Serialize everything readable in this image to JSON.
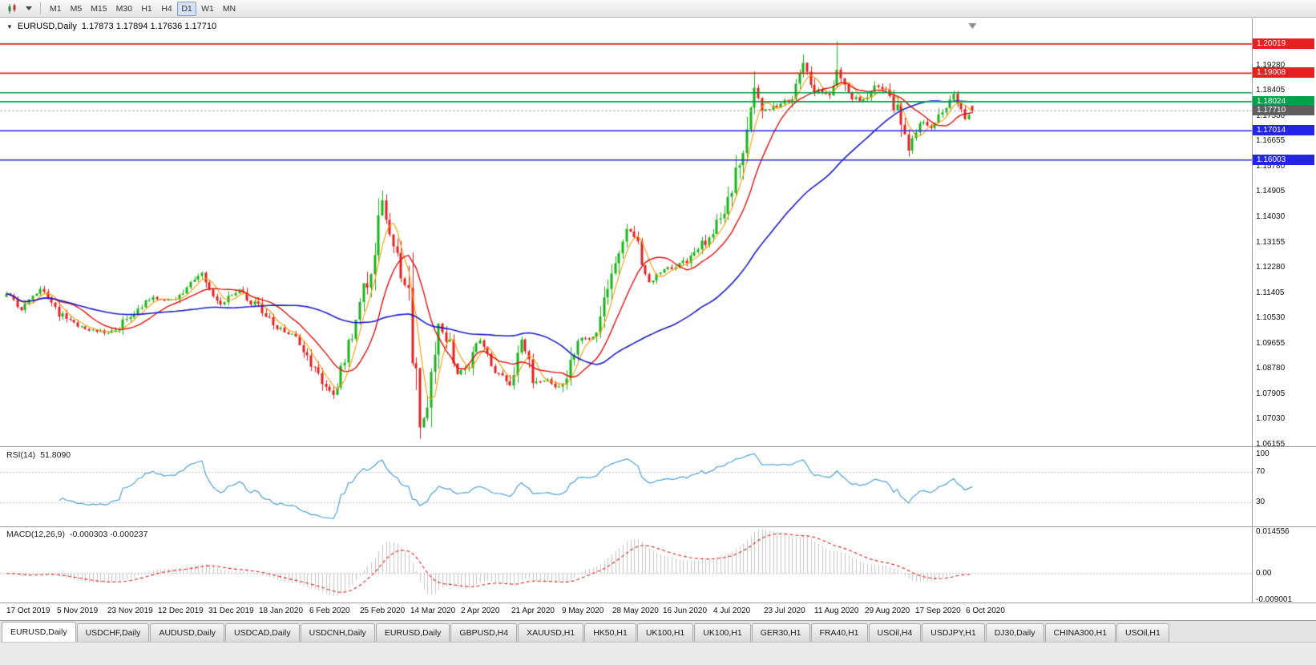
{
  "toolbar": {
    "timeframes": [
      {
        "label": "M1",
        "active": false
      },
      {
        "label": "M5",
        "active": false
      },
      {
        "label": "M15",
        "active": false
      },
      {
        "label": "M30",
        "active": false
      },
      {
        "label": "H1",
        "active": false
      },
      {
        "label": "H4",
        "active": false
      },
      {
        "label": "D1",
        "active": true
      },
      {
        "label": "W1",
        "active": false
      },
      {
        "label": "MN",
        "active": false
      }
    ]
  },
  "chart": {
    "title": "EURUSD,Daily",
    "ohlc_text": "1.17873 1.17894 1.17636 1.17710"
  },
  "price_axis": {
    "tick_labels": [
      "1.19280",
      "1.18405",
      "1.17530",
      "1.16655",
      "1.15780",
      "1.14905",
      "1.14030",
      "1.13155",
      "1.12280",
      "1.11405",
      "1.10530",
      "1.09655",
      "1.08780",
      "1.07905",
      "1.07030",
      "1.06155"
    ]
  },
  "rsi_panel": {
    "label": "RSI(14)",
    "value": "51.8090",
    "levels": [
      "100",
      "70",
      "30"
    ]
  },
  "macd_panel": {
    "label": "MACD(12,26,9)",
    "values": "-0.000303 -0.000237",
    "axis": [
      "0.014556",
      "0.00",
      "-0.009001"
    ]
  },
  "time_axis": {
    "labels": [
      "17 Oct 2019",
      "5 Nov 2019",
      "23 Nov 2019",
      "12 Dec 2019",
      "31 Dec 2019",
      "18 Jan 2020",
      "6 Feb 2020",
      "25 Feb 2020",
      "14 Mar 2020",
      "2 Apr 2020",
      "21 Apr 2020",
      "9 May 2020",
      "28 May 2020",
      "16 Jun 2020",
      "4 Jul 2020",
      "23 Jul 2020",
      "11 Aug 2020",
      "29 Aug 2020",
      "17 Sep 2020",
      "6 Oct 2020"
    ]
  },
  "window_tabs": [
    {
      "label": "EURUSD,Daily",
      "active": true
    },
    {
      "label": "USDCHF,Daily",
      "active": false
    },
    {
      "label": "AUDUSD,Daily",
      "active": false
    },
    {
      "label": "USDCAD,Daily",
      "active": false
    },
    {
      "label": "USDCNH,Daily",
      "active": false
    },
    {
      "label": "EURUSD,Daily",
      "active": false
    },
    {
      "label": "GBPUSD,H4",
      "active": false
    },
    {
      "label": "XAUUSD,H1",
      "active": false
    },
    {
      "label": "HK50,H1",
      "active": false
    },
    {
      "label": "UK100,H1",
      "active": false
    },
    {
      "label": "UK100,H1",
      "active": false
    },
    {
      "label": "GER30,H1",
      "active": false
    },
    {
      "label": "FRA40,H1",
      "active": false
    },
    {
      "label": "USOil,H4",
      "active": false
    },
    {
      "label": "USDJPY,H1",
      "active": false
    },
    {
      "label": "DJ30,Daily",
      "active": false
    },
    {
      "label": "CHINA300,H1",
      "active": false
    },
    {
      "label": "USOil,H1",
      "active": false
    }
  ],
  "chart_data": {
    "type": "candlestick",
    "symbol": "EURUSD",
    "timeframe": "Daily",
    "bars": 258,
    "price_axis": {
      "min": 1.061,
      "max": 1.2082
    },
    "close_path": [
      [
        0,
        1.1135
      ],
      [
        4,
        1.1085
      ],
      [
        9,
        1.116
      ],
      [
        14,
        1.107
      ],
      [
        19,
        1.102
      ],
      [
        24,
        1.101
      ],
      [
        29,
        1.1005
      ],
      [
        34,
        1.108
      ],
      [
        39,
        1.1125
      ],
      [
        44,
        1.1115
      ],
      [
        49,
        1.1175
      ],
      [
        52,
        1.121
      ],
      [
        57,
        1.1105
      ],
      [
        62,
        1.115
      ],
      [
        67,
        1.109
      ],
      [
        72,
        1.1015
      ],
      [
        77,
        1.1
      ],
      [
        82,
        1.0875
      ],
      [
        87,
        1.0792
      ],
      [
        92,
        1.1
      ],
      [
        97,
        1.124
      ],
      [
        100,
        1.145
      ],
      [
        102,
        1.137
      ],
      [
        105,
        1.118
      ],
      [
        107,
        1.11
      ],
      [
        110,
        1.069
      ],
      [
        112,
        1.072
      ],
      [
        115,
        1.103
      ],
      [
        118,
        1.095
      ],
      [
        120,
        1.086
      ],
      [
        123,
        1.089
      ],
      [
        126,
        1.098
      ],
      [
        130,
        1.0865
      ],
      [
        134,
        1.082
      ],
      [
        137,
        1.0975
      ],
      [
        140,
        1.084
      ],
      [
        144,
        1.0835
      ],
      [
        148,
        1.081
      ],
      [
        152,
        1.098
      ],
      [
        156,
        1.0985
      ],
      [
        160,
        1.1135
      ],
      [
        165,
        1.137
      ],
      [
        168,
        1.13
      ],
      [
        171,
        1.118
      ],
      [
        175,
        1.122
      ],
      [
        179,
        1.1235
      ],
      [
        183,
        1.127
      ],
      [
        187,
        1.134
      ],
      [
        191,
        1.143
      ],
      [
        195,
        1.16
      ],
      [
        199,
        1.1845
      ],
      [
        201,
        1.177
      ],
      [
        205,
        1.1785
      ],
      [
        209,
        1.1815
      ],
      [
        212,
        1.1935
      ],
      [
        215,
        1.184
      ],
      [
        219,
        1.182
      ],
      [
        221,
        1.1905
      ],
      [
        224,
        1.182
      ],
      [
        228,
        1.18
      ],
      [
        231,
        1.1865
      ],
      [
        234,
        1.1845
      ],
      [
        237,
        1.177
      ],
      [
        240,
        1.163
      ],
      [
        243,
        1.174
      ],
      [
        246,
        1.1715
      ],
      [
        249,
        1.1765
      ],
      [
        252,
        1.1825
      ],
      [
        255,
        1.1745
      ],
      [
        257,
        1.1771
      ]
    ],
    "key_points": [
      {
        "bar": 87,
        "low": 1.0778
      },
      {
        "bar": 100,
        "high": 1.1495
      },
      {
        "bar": 110,
        "low": 1.0636
      },
      {
        "bar": 199,
        "high": 1.1908
      },
      {
        "bar": 212,
        "high": 1.1966
      },
      {
        "bar": 221,
        "high": 1.2011
      },
      {
        "bar": 240,
        "low": 1.1612
      }
    ],
    "last_candle": {
      "open": 1.17873,
      "high": 1.17894,
      "low": 1.17636,
      "close": 1.1771
    },
    "up_color": "#18b318",
    "down_color": "#e02020",
    "moving_averages": [
      {
        "period": 5,
        "color": "#ff9900",
        "width": 1.1
      },
      {
        "period": 13,
        "color": "#e01010",
        "width": 1.4
      },
      {
        "period": 50,
        "color": "#1a1acc",
        "width": 1.6
      }
    ],
    "levels": [
      {
        "price": 1.20019,
        "label": "1.20019",
        "color": "#e42020",
        "badge": true
      },
      {
        "price": 1.19008,
        "label": "1.19008",
        "color": "#e42020",
        "badge": true
      },
      {
        "price": 1.1833,
        "label": "1.18330",
        "color": "#00a14b",
        "badge": false
      },
      {
        "price": 1.18024,
        "label": "1.18024",
        "color": "#00a14b",
        "badge": true
      },
      {
        "price": 1.17014,
        "label": "1.17014",
        "color": "#2424e4",
        "badge": true
      },
      {
        "price": 1.16003,
        "label": "1.16003",
        "color": "#2424e4",
        "badge": true
      }
    ],
    "current_price": {
      "value": 1.1771,
      "label": "1.17710",
      "badge_color": "#5f5f5f",
      "line_color": "#a8a8a8"
    },
    "rsi": {
      "period": 14,
      "color": "#4f9fd8",
      "level_values": [
        70,
        30
      ]
    },
    "macd": {
      "fast": 12,
      "slow": 26,
      "signal": 9,
      "scale_max": 0.014556,
      "scale_min": -0.009001,
      "histogram_color": "#c4c4c4",
      "signal_color": "#e02020"
    }
  }
}
